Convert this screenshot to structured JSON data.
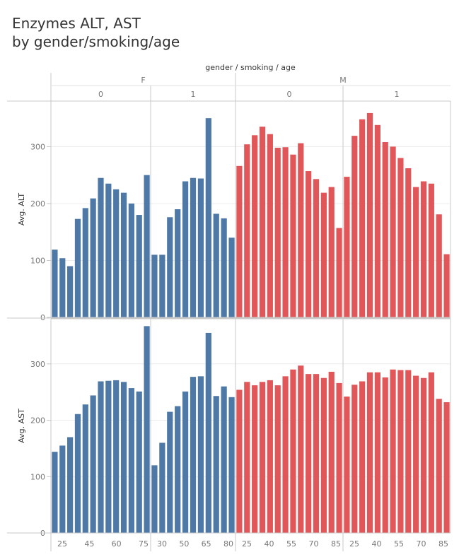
{
  "title": {
    "line1": "Enzymes ALT, AST",
    "line2": "by gender/smoking/age"
  },
  "chart_data": {
    "type": "bar",
    "header_title": "gender / smoking / age",
    "gender_groups": [
      "F",
      "M"
    ],
    "smoking_groups": [
      "0",
      "1"
    ],
    "x_tick_labels": [
      [
        "25",
        "45",
        "60",
        "75"
      ],
      [
        "30",
        "50",
        "65",
        "80"
      ],
      [
        "25",
        "40",
        "55",
        "70",
        "85"
      ],
      [
        "25",
        "40",
        "55",
        "70",
        "85"
      ]
    ],
    "colors": {
      "F": "#4e79a7",
      "M": "#e15759"
    },
    "ylim": [
      0,
      380
    ],
    "y_ticks": [
      0,
      100,
      200,
      300
    ],
    "grid": true,
    "panels": [
      {
        "name": "Avg. ALT",
        "ylabel": "Avg. ALT",
        "groups": [
          {
            "gender": "F",
            "smoking": "0",
            "values": [
              119,
              104,
              90,
              173,
              192,
              209,
              245,
              235,
              225,
              219,
              200,
              180,
              250
            ]
          },
          {
            "gender": "F",
            "smoking": "1",
            "values": [
              110,
              110,
              176,
              190,
              239,
              245,
              244,
              350,
              182,
              174,
              140
            ]
          },
          {
            "gender": "M",
            "smoking": "0",
            "values": [
              266,
              304,
              320,
              335,
              322,
              298,
              299,
              286,
              306,
              257,
              243,
              219,
              229,
              157
            ]
          },
          {
            "gender": "M",
            "smoking": "1",
            "values": [
              247,
              319,
              348,
              359,
              338,
              308,
              300,
              280,
              262,
              229,
              239,
              235,
              181,
              111
            ]
          }
        ]
      },
      {
        "name": "Avg. AST",
        "ylabel": "Avg. AST",
        "groups": [
          {
            "gender": "F",
            "smoking": "0",
            "values": [
              144,
              155,
              170,
              211,
              228,
              244,
              269,
              270,
              271,
              268,
              257,
              251,
              367
            ]
          },
          {
            "gender": "F",
            "smoking": "1",
            "values": [
              120,
              160,
              215,
              225,
              251,
              277,
              278,
              355,
              243,
              260,
              241
            ]
          },
          {
            "gender": "M",
            "smoking": "0",
            "values": [
              254,
              268,
              262,
              268,
              271,
              262,
              278,
              290,
              297,
              282,
              282,
              275,
              286,
              266
            ]
          },
          {
            "gender": "M",
            "smoking": "1",
            "values": [
              242,
              263,
              269,
              285,
              285,
              276,
              290,
              289,
              289,
              279,
              275,
              285,
              238,
              232
            ]
          }
        ]
      }
    ]
  }
}
